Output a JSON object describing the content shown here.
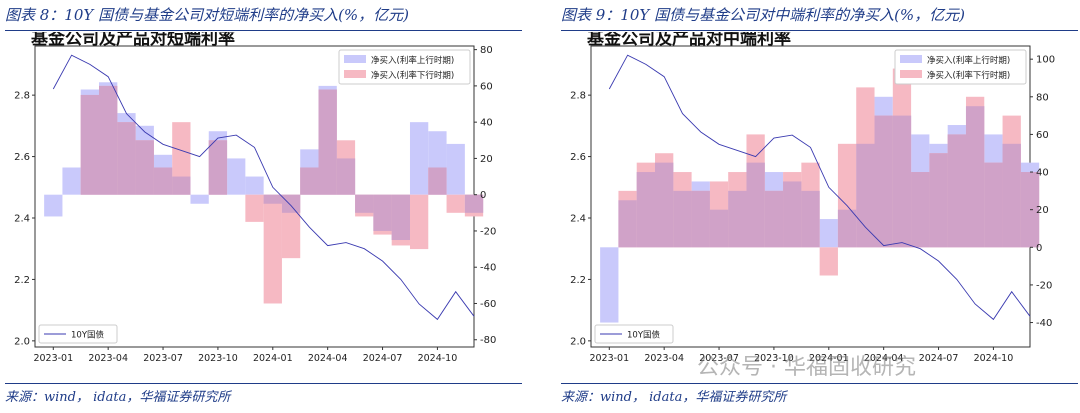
{
  "figures": [
    {
      "figure_title": "图表 8：10Y 国债与基金公司对短端利率的净买入(%，亿元)",
      "source": "来源：wind，  idata，华福证券研究所",
      "colors": {
        "up": "#c9c9fb",
        "down": "#f6b9c3",
        "overlap": "#d0a2c8",
        "line": "#3a3ab0"
      }
    },
    {
      "figure_title": "图表 9：10Y 国债与基金公司对中端利率的净买入(%，亿元)",
      "source": "来源：wind，  idata，华福证券研究所",
      "colors": {
        "up": "#c9c9fb",
        "down": "#f6b9c3",
        "overlap": "#d0a2c8",
        "line": "#3a3ab0"
      }
    }
  ],
  "chart_data": [
    {
      "type": "area",
      "title": "基金公司及产品对短端利率",
      "x_ticks": [
        "2023-01",
        "2023-04",
        "2023-07",
        "2023-10",
        "2024-01",
        "2024-04",
        "2024-07",
        "2024-10"
      ],
      "x_range": [
        "2022-12",
        "2024-12"
      ],
      "left_axis": {
        "ticks": [
          2.0,
          2.2,
          2.4,
          2.6,
          2.8
        ],
        "ylim": [
          1.98,
          2.96
        ]
      },
      "right_axis": {
        "ticks": [
          -80,
          -60,
          -40,
          -20,
          0,
          20,
          40,
          60,
          80
        ],
        "ylim": [
          -84,
          82
        ]
      },
      "legend": [
        "净买入(利率上行时期)",
        "净买入(利率下行时期)",
        "10Y国债"
      ],
      "legend_placement": "top-right / bottom-left",
      "series": [
        {
          "name": "10Y国债",
          "axis": "left",
          "type": "line",
          "x": [
            "2023-01",
            "2023-02",
            "2023-03",
            "2023-04",
            "2023-05",
            "2023-06",
            "2023-07",
            "2023-08",
            "2023-09",
            "2023-10",
            "2023-11",
            "2023-12",
            "2024-01",
            "2024-02",
            "2024-03",
            "2024-04",
            "2024-05",
            "2024-06",
            "2024-07",
            "2024-08",
            "2024-09",
            "2024-10",
            "2024-11",
            "2024-12"
          ],
          "values": [
            2.82,
            2.93,
            2.9,
            2.86,
            2.74,
            2.68,
            2.64,
            2.62,
            2.6,
            2.66,
            2.67,
            2.63,
            2.5,
            2.44,
            2.37,
            2.31,
            2.32,
            2.3,
            2.26,
            2.2,
            2.12,
            2.07,
            2.16,
            2.08
          ]
        },
        {
          "name": "净买入(利率上行时期)",
          "axis": "right",
          "type": "area",
          "x": [
            "2023-01",
            "2023-02",
            "2023-03",
            "2023-04",
            "2023-05",
            "2023-06",
            "2023-07",
            "2023-08",
            "2023-09",
            "2023-10",
            "2023-11",
            "2023-12",
            "2024-01",
            "2024-02",
            "2024-03",
            "2024-04",
            "2024-05",
            "2024-06",
            "2024-07",
            "2024-08",
            "2024-09",
            "2024-10",
            "2024-11",
            "2024-12"
          ],
          "values": [
            -12,
            15,
            58,
            62,
            45,
            38,
            22,
            10,
            -5,
            35,
            20,
            10,
            -5,
            -10,
            25,
            60,
            20,
            -10,
            -20,
            -25,
            40,
            35,
            28,
            -10
          ]
        },
        {
          "name": "净买入(利率下行时期)",
          "axis": "right",
          "type": "area",
          "x": [
            "2023-01",
            "2023-02",
            "2023-03",
            "2023-04",
            "2023-05",
            "2023-06",
            "2023-07",
            "2023-08",
            "2023-09",
            "2023-10",
            "2023-11",
            "2023-12",
            "2024-01",
            "2024-02",
            "2024-03",
            "2024-04",
            "2024-05",
            "2024-06",
            "2024-07",
            "2024-08",
            "2024-09",
            "2024-10",
            "2024-11",
            "2024-12"
          ],
          "values": [
            0,
            0,
            55,
            60,
            40,
            30,
            15,
            40,
            0,
            30,
            0,
            -15,
            -60,
            -35,
            15,
            58,
            30,
            -12,
            -22,
            -28,
            -30,
            15,
            -10,
            -12
          ]
        }
      ]
    },
    {
      "type": "area",
      "title": "基金公司及产品对中端利率",
      "x_ticks": [
        "2023-01",
        "2023-04",
        "2023-07",
        "2023-10",
        "2024-01",
        "2024-04",
        "2024-07",
        "2024-10"
      ],
      "x_range": [
        "2022-12",
        "2024-12"
      ],
      "left_axis": {
        "ticks": [
          2.0,
          2.2,
          2.4,
          2.6,
          2.8
        ],
        "ylim": [
          1.98,
          2.96
        ]
      },
      "right_axis": {
        "ticks": [
          -40,
          -20,
          0,
          20,
          40,
          60,
          80,
          100
        ],
        "ylim": [
          -53,
          107
        ]
      },
      "legend": [
        "净买入(利率上行时期)",
        "净买入(利率下行时期)",
        "10Y国债"
      ],
      "legend_placement": "top-right / bottom-left",
      "series": [
        {
          "name": "10Y国债",
          "axis": "left",
          "type": "line",
          "x": [
            "2023-01",
            "2023-02",
            "2023-03",
            "2023-04",
            "2023-05",
            "2023-06",
            "2023-07",
            "2023-08",
            "2023-09",
            "2023-10",
            "2023-11",
            "2023-12",
            "2024-01",
            "2024-02",
            "2024-03",
            "2024-04",
            "2024-05",
            "2024-06",
            "2024-07",
            "2024-08",
            "2024-09",
            "2024-10",
            "2024-11",
            "2024-12"
          ],
          "values": [
            2.82,
            2.93,
            2.9,
            2.86,
            2.74,
            2.68,
            2.64,
            2.62,
            2.6,
            2.66,
            2.67,
            2.63,
            2.5,
            2.44,
            2.37,
            2.31,
            2.32,
            2.3,
            2.26,
            2.2,
            2.12,
            2.07,
            2.16,
            2.08
          ]
        },
        {
          "name": "净买入(利率上行时期)",
          "axis": "right",
          "type": "area",
          "x": [
            "2023-01",
            "2023-02",
            "2023-03",
            "2023-04",
            "2023-05",
            "2023-06",
            "2023-07",
            "2023-08",
            "2023-09",
            "2023-10",
            "2023-11",
            "2023-12",
            "2024-01",
            "2024-02",
            "2024-03",
            "2024-04",
            "2024-05",
            "2024-06",
            "2024-07",
            "2024-08",
            "2024-09",
            "2024-10",
            "2024-11",
            "2024-12"
          ],
          "values": [
            -40,
            25,
            40,
            45,
            30,
            35,
            20,
            30,
            45,
            40,
            35,
            30,
            15,
            20,
            55,
            80,
            70,
            60,
            55,
            65,
            75,
            60,
            55,
            45
          ]
        },
        {
          "name": "净买入(利率下行时期)",
          "axis": "right",
          "type": "area",
          "x": [
            "2023-01",
            "2023-02",
            "2023-03",
            "2023-04",
            "2023-05",
            "2023-06",
            "2023-07",
            "2023-08",
            "2023-09",
            "2023-10",
            "2023-11",
            "2023-12",
            "2024-01",
            "2024-02",
            "2024-03",
            "2024-04",
            "2024-05",
            "2024-06",
            "2024-07",
            "2024-08",
            "2024-09",
            "2024-10",
            "2024-11",
            "2024-12"
          ],
          "values": [
            0,
            30,
            45,
            50,
            40,
            30,
            35,
            40,
            60,
            30,
            40,
            45,
            -15,
            55,
            85,
            70,
            95,
            40,
            50,
            60,
            80,
            45,
            70,
            40
          ]
        }
      ]
    }
  ],
  "watermark": "公众号 · 华福固收研究"
}
